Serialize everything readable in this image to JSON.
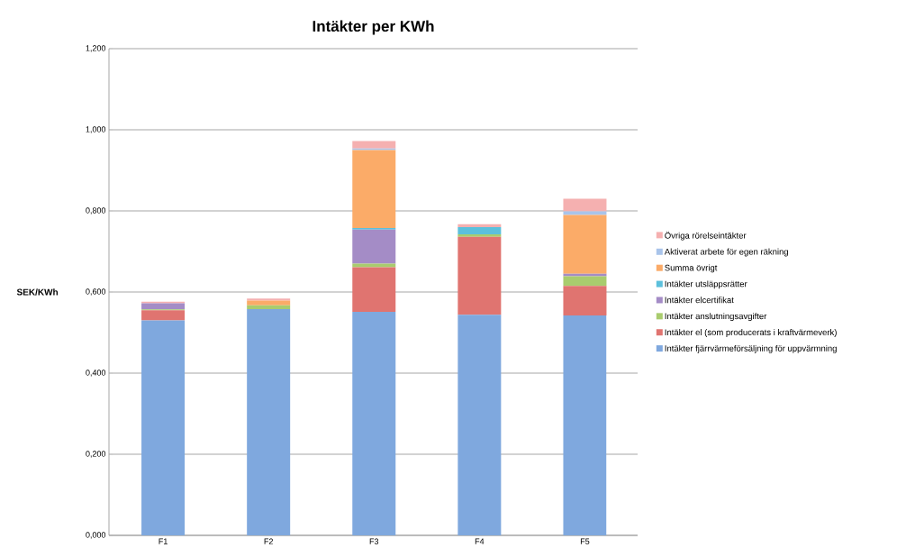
{
  "chart_data": {
    "type": "bar",
    "stacked": true,
    "title": "Intäkter per KWh",
    "ylabel": "SEK/KWh",
    "categories": [
      "F1",
      "F2",
      "F3",
      "F4",
      "F5"
    ],
    "series": [
      {
        "name": "Intäkter fjärrvärmeförsäljning för uppvärmning",
        "color": "#7fa8de",
        "values": [
          0.53,
          0.558,
          0.551,
          0.544,
          0.542
        ]
      },
      {
        "name": "Intäkter el (som producerats i kraftvärmeverk)",
        "color": "#e07470",
        "values": [
          0.025,
          0,
          0.11,
          0.192,
          0.073
        ]
      },
      {
        "name": "Intäkter anslutningsavgifter",
        "color": "#a9cc6e",
        "values": [
          0.002,
          0.009,
          0.009,
          0.006,
          0.024
        ]
      },
      {
        "name": "Intäkter elcertifikat",
        "color": "#a48cc6",
        "values": [
          0.015,
          0,
          0.084,
          0,
          0.006
        ]
      },
      {
        "name": "Intäkter utsläppsrätter",
        "color": "#5cc0dc",
        "values": [
          0,
          0,
          0.004,
          0.018,
          0
        ]
      },
      {
        "name": "Summa övrigt",
        "color": "#fbab68",
        "values": [
          0,
          0.012,
          0.192,
          0,
          0.145
        ]
      },
      {
        "name": "Aktiverat arbete för egen räkning",
        "color": "#a9c4ea",
        "values": [
          0,
          0,
          0.004,
          0,
          0.009
        ]
      },
      {
        "name": "Övriga rörelseintäkter",
        "color": "#f5b0b0",
        "values": [
          0.004,
          0.005,
          0.018,
          0.007,
          0.031
        ]
      }
    ],
    "ylim": [
      0,
      1.2
    ],
    "yticks": [
      {
        "value": 0,
        "label": "0,000"
      },
      {
        "value": 0.2,
        "label": "0,200"
      },
      {
        "value": 0.4,
        "label": "0,400"
      },
      {
        "value": 0.6,
        "label": "0,600"
      },
      {
        "value": 0.8,
        "label": "0,800"
      },
      {
        "value": 1.0,
        "label": "1,000"
      },
      {
        "value": 1.2,
        "label": "1,200"
      }
    ],
    "grid": "y",
    "legend": "right"
  }
}
